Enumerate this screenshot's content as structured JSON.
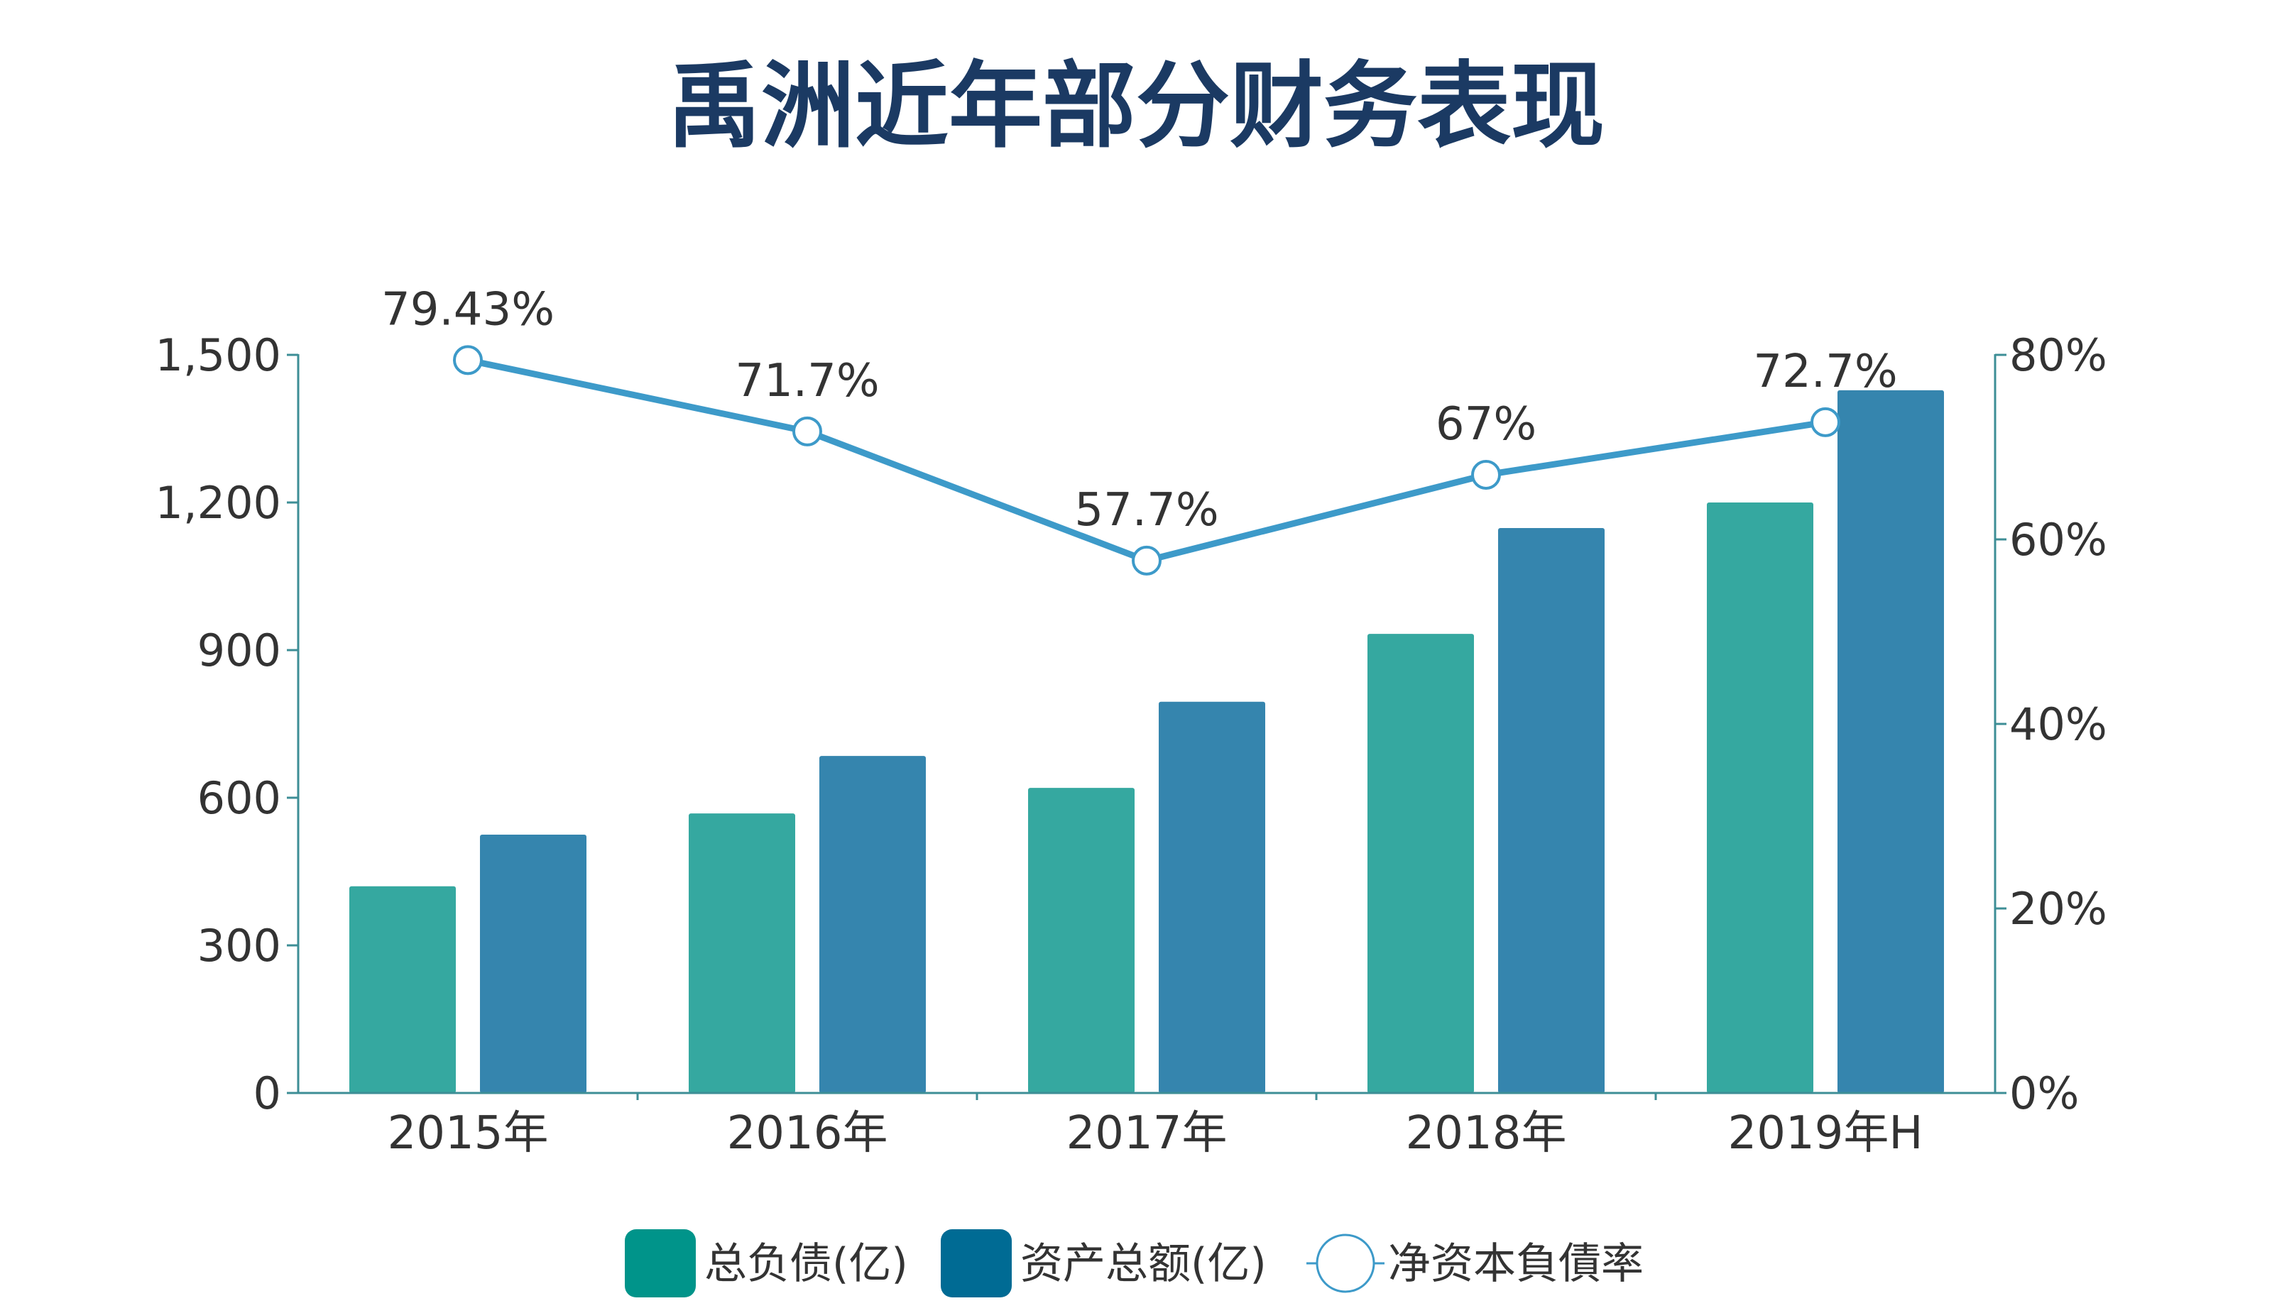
{
  "colors": {
    "title": "#1b3a63",
    "axis": "#3d8e96",
    "liabilities": "#35a8a0",
    "assets": "#3585ae",
    "line": "#3d9ac9",
    "legend_liabilities": "#00948a",
    "legend_assets": "#006b94"
  },
  "chart_data": {
    "type": "bar",
    "title": "禹洲近年部分财务表现",
    "categories": [
      "2015年",
      "2016年",
      "2017年",
      "2018年",
      "2019年H"
    ],
    "series": [
      {
        "name": "总负债(亿)",
        "type": "bar",
        "axis": "left",
        "values": [
          420,
          568,
          620,
          933,
          1200
        ]
      },
      {
        "name": "资产总额(亿)",
        "type": "bar",
        "axis": "left",
        "values": [
          525,
          685,
          795,
          1148,
          1428
        ]
      },
      {
        "name": "净资本負債率",
        "type": "line",
        "axis": "right",
        "values": [
          79.43,
          71.7,
          57.7,
          67,
          72.7
        ],
        "labels": [
          "79.43%",
          "71.7%",
          "57.7%",
          "67%",
          "72.7%"
        ]
      }
    ],
    "left_axis": {
      "ylim": [
        0,
        1500
      ],
      "ticks": [
        0,
        300,
        600,
        900,
        1200,
        1500
      ],
      "tick_labels": [
        "0",
        "300",
        "600",
        "900",
        "1,200",
        "1,500"
      ]
    },
    "right_axis": {
      "ylim": [
        0,
        80
      ],
      "ticks": [
        0,
        20,
        40,
        60,
        80
      ],
      "tick_labels": [
        "0%",
        "20%",
        "40%",
        "60%",
        "80%"
      ]
    },
    "legend": [
      "总负债(亿)",
      "资产总额(亿)",
      "净资本負債率"
    ],
    "legend_position": "bottom-center",
    "grid": false
  }
}
